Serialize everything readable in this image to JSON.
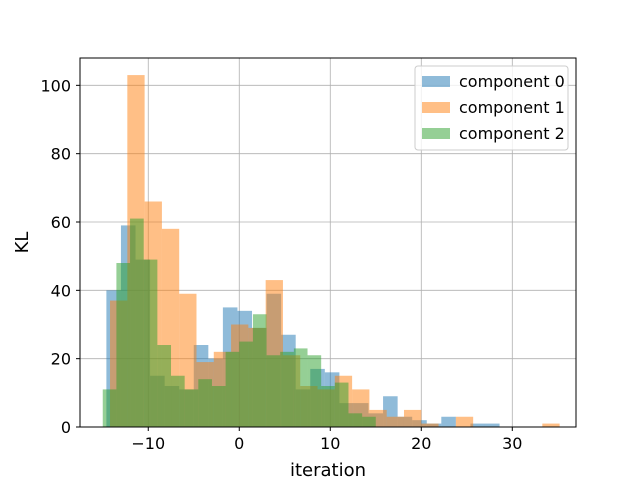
{
  "chart_data": {
    "type": "bar",
    "subtype": "overlapping-histogram",
    "xlabel": "iteration",
    "ylabel": "KL",
    "xlim": [
      -17.5,
      37
    ],
    "ylim": [
      0,
      108
    ],
    "xticks": [
      -10,
      0,
      10,
      20,
      30
    ],
    "xtick_labels": [
      "−10",
      "0",
      "10",
      "20",
      "30"
    ],
    "yticks": [
      0,
      20,
      40,
      60,
      80,
      100
    ],
    "ytick_labels": [
      "0",
      "20",
      "40",
      "60",
      "80",
      "100"
    ],
    "grid": true,
    "legend_position": "top-right",
    "bar_opacity": 0.5,
    "series": [
      {
        "name": "component 0",
        "color": "#1f77b4",
        "bins": [
          [
            -14.6,
            -13.0,
            40
          ],
          [
            -13.0,
            -11.4,
            59
          ],
          [
            -11.4,
            -9.8,
            49
          ],
          [
            -9.8,
            -8.2,
            15
          ],
          [
            -8.2,
            -6.6,
            12
          ],
          [
            -6.6,
            -5.0,
            11
          ],
          [
            -5.0,
            -3.4,
            24
          ],
          [
            -3.4,
            -1.8,
            20
          ],
          [
            -1.8,
            -0.2,
            35
          ],
          [
            -0.2,
            1.4,
            34
          ],
          [
            1.4,
            3.0,
            29
          ],
          [
            3.0,
            4.6,
            39
          ],
          [
            4.6,
            6.2,
            27
          ],
          [
            6.2,
            7.8,
            11
          ],
          [
            7.8,
            9.4,
            17
          ],
          [
            9.4,
            11.0,
            16
          ],
          [
            11.0,
            12.6,
            7
          ],
          [
            12.6,
            14.2,
            7
          ],
          [
            14.2,
            15.8,
            4
          ],
          [
            15.8,
            17.4,
            9
          ],
          [
            17.4,
            19.0,
            3
          ],
          [
            19.0,
            20.6,
            2
          ],
          [
            20.6,
            22.2,
            1
          ],
          [
            22.2,
            23.8,
            3
          ],
          [
            23.8,
            25.4,
            0
          ],
          [
            25.4,
            27.0,
            1
          ],
          [
            27.0,
            28.6,
            1
          ]
        ]
      },
      {
        "name": "component 1",
        "color": "#ff7f0e",
        "bins": [
          [
            -14.2,
            -12.3,
            37
          ],
          [
            -12.3,
            -10.4,
            103
          ],
          [
            -10.4,
            -8.5,
            66
          ],
          [
            -8.5,
            -6.6,
            58
          ],
          [
            -6.6,
            -4.7,
            39
          ],
          [
            -4.7,
            -2.8,
            19
          ],
          [
            -2.8,
            -0.9,
            22
          ],
          [
            -0.9,
            1.0,
            30
          ],
          [
            1.0,
            2.9,
            29
          ],
          [
            2.9,
            4.8,
            43
          ],
          [
            4.8,
            6.7,
            21
          ],
          [
            6.7,
            8.6,
            12
          ],
          [
            8.6,
            10.5,
            11
          ],
          [
            10.5,
            12.4,
            15
          ],
          [
            12.4,
            14.3,
            11
          ],
          [
            14.3,
            16.2,
            5
          ],
          [
            16.2,
            18.1,
            3
          ],
          [
            18.1,
            20.0,
            5
          ],
          [
            20.0,
            21.9,
            1
          ],
          [
            21.9,
            23.8,
            0
          ],
          [
            23.8,
            25.7,
            3
          ],
          [
            25.7,
            27.6,
            0
          ],
          [
            27.6,
            29.5,
            0
          ],
          [
            29.5,
            31.4,
            0
          ],
          [
            31.4,
            33.3,
            0
          ],
          [
            33.3,
            35.2,
            1
          ]
        ]
      },
      {
        "name": "component 2",
        "color": "#2ca02c",
        "bins": [
          [
            -15.0,
            -13.5,
            11
          ],
          [
            -13.5,
            -12.0,
            48
          ],
          [
            -12.0,
            -10.5,
            61
          ],
          [
            -10.5,
            -9.0,
            49
          ],
          [
            -9.0,
            -7.5,
            24
          ],
          [
            -7.5,
            -6.0,
            15
          ],
          [
            -6.0,
            -4.5,
            11
          ],
          [
            -4.5,
            -3.0,
            14
          ],
          [
            -3.0,
            -1.5,
            12
          ],
          [
            -1.5,
            0.0,
            22
          ],
          [
            0.0,
            1.5,
            25
          ],
          [
            1.5,
            3.0,
            33
          ],
          [
            3.0,
            4.5,
            21
          ],
          [
            4.5,
            6.0,
            22
          ],
          [
            6.0,
            7.5,
            23
          ],
          [
            7.5,
            9.0,
            21
          ],
          [
            9.0,
            10.5,
            12
          ],
          [
            10.5,
            12.0,
            13
          ],
          [
            12.0,
            13.5,
            4
          ],
          [
            13.5,
            15.0,
            3
          ]
        ]
      }
    ]
  }
}
